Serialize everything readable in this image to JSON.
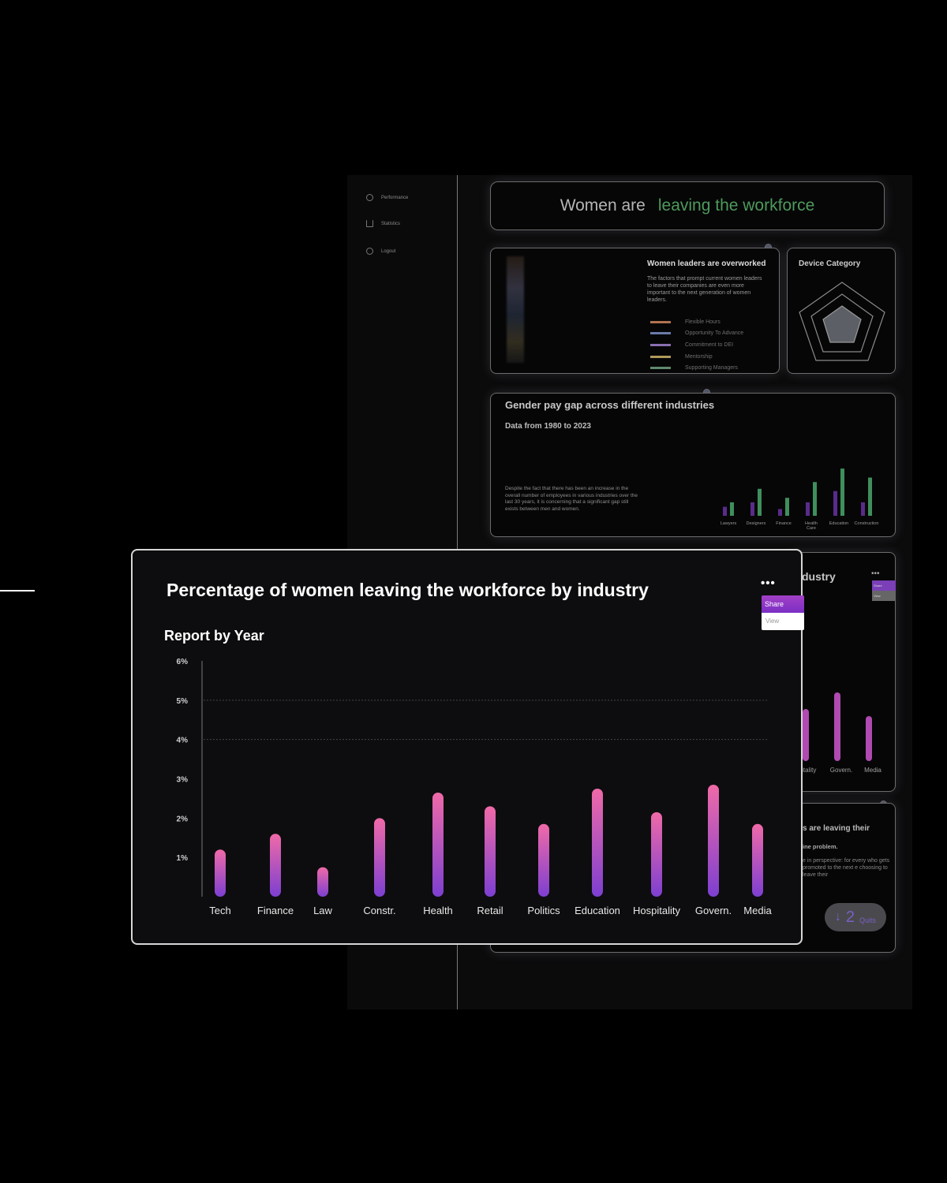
{
  "sidebar": {
    "items": [
      {
        "label": "Performance",
        "icon": "refresh-icon"
      },
      {
        "label": "Statistics",
        "icon": "bar-chart-icon"
      },
      {
        "label": "Logout",
        "icon": "logout-icon"
      }
    ]
  },
  "hero": {
    "prefix": "Women are",
    "highlight": "leaving the workforce",
    "highlight_color": "#4f9a5b"
  },
  "overworked": {
    "title": "Women leaders are overworked",
    "desc": "The factors that prompt current women leaders to leave their companies are even more important to the next generation of women leaders.",
    "legend": [
      {
        "label": "Flexible Hours",
        "color": "#b07350"
      },
      {
        "label": "Opportunity To Advance",
        "color": "#6a7aa8"
      },
      {
        "label": "Commitment to DEI",
        "color": "#8a6fb0"
      },
      {
        "label": "Mentorship",
        "color": "#b09a5a"
      },
      {
        "label": "Supporting Managers",
        "color": "#5f8a6b"
      }
    ]
  },
  "device": {
    "title": "Device Category"
  },
  "pay_gap": {
    "title": "Gender pay gap across different industries",
    "subtitle": "Data from 1980 to 2023",
    "desc": "Despite the fact that there has been an increase in the overall number of employees in various industries over the last 30 years, it is concerning that a significant gap still exists between men and women.",
    "chart_data": {
      "type": "bar",
      "categories": [
        "Lawyers",
        "Designers",
        "Finance",
        "Health Care",
        "Education",
        "Construction"
      ],
      "series": [
        {
          "values": [
            2,
            3,
            1.5,
            3,
            5.5,
            3
          ],
          "color": "#5a2b8a"
        },
        {
          "values": [
            3,
            6,
            4,
            7.5,
            10.5,
            8.5
          ],
          "color": "#3f8f5c"
        }
      ]
    }
  },
  "back_industry": {
    "title": "dustry",
    "menu_share": "Share",
    "menu_view": "View",
    "chart_data": {
      "type": "bar",
      "categories": [
        "Hospitality",
        "Govern.",
        "Media"
      ],
      "tick_labels": [
        "spitality",
        "Govern.",
        "Media"
      ],
      "values": [
        2.2,
        2.9,
        1.9
      ]
    }
  },
  "quit_card": {
    "title": "s are leaving their",
    "subtitle": "ine problem.",
    "desc": "e in perspective: for every who gets promoted to the next e choosing to leave their",
    "count": "2",
    "count_label": "Quits",
    "arrow": "↓"
  },
  "main": {
    "title": "Percentage of women leaving the workforce by industry",
    "subtitle": "Report by Year",
    "menu": {
      "share": "Share",
      "view": "View"
    },
    "dots": "•••",
    "chart_data": {
      "type": "bar",
      "title": "Percentage of women leaving the workforce by industry",
      "subtitle": "Report by Year",
      "categories": [
        "Tech",
        "Finance",
        "Law",
        "Constr.",
        "Health",
        "Retail",
        "Politics",
        "Education",
        "Hospitality",
        "Govern.",
        "Media"
      ],
      "values": [
        1.2,
        1.6,
        0.75,
        2.0,
        2.65,
        2.3,
        1.85,
        2.75,
        2.15,
        2.85,
        1.85
      ],
      "y_ticks": [
        "1%",
        "2%",
        "3%",
        "4%",
        "5%",
        "6%"
      ],
      "ylim": [
        0,
        6
      ],
      "grid": true,
      "bar_color_top": "#f06aa8",
      "bar_color_bottom": "#7d3fd1"
    }
  }
}
